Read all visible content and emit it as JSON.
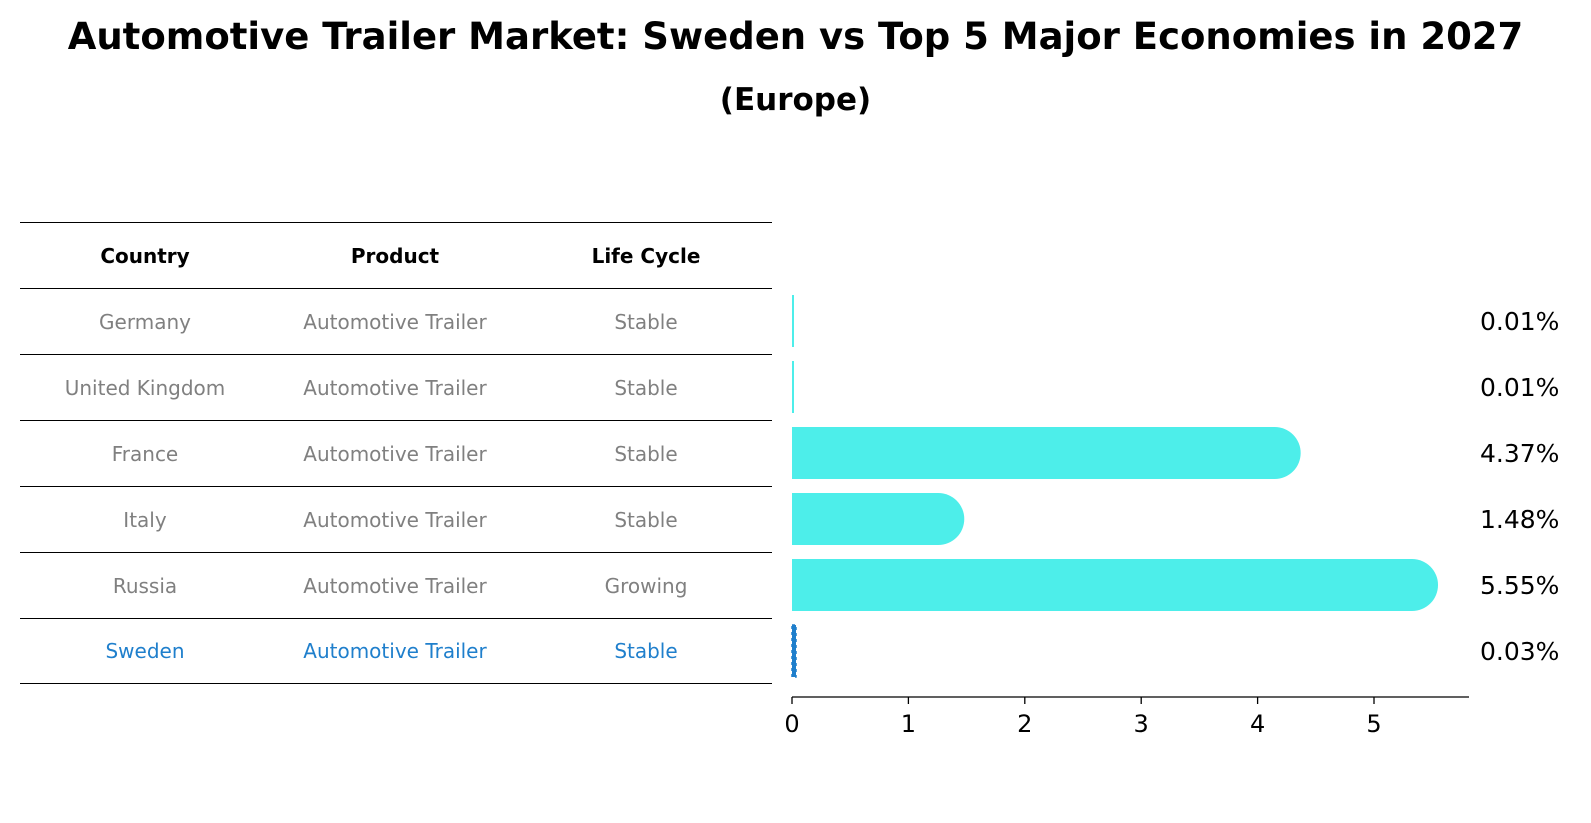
{
  "title": "Automotive Trailer Market: Sweden vs Top 5 Major Economies in 2027",
  "subtitle": "(Europe)",
  "table": {
    "headers": [
      "Country",
      "Product",
      "Life Cycle"
    ],
    "rows": [
      {
        "country": "Germany",
        "product": "Automotive Trailer",
        "life_cycle": "Stable"
      },
      {
        "country": "United Kingdom",
        "product": "Automotive Trailer",
        "life_cycle": "Stable"
      },
      {
        "country": "France",
        "product": "Automotive Trailer",
        "life_cycle": "Stable"
      },
      {
        "country": "Italy",
        "product": "Automotive Trailer",
        "life_cycle": "Stable"
      },
      {
        "country": "Russia",
        "product": "Automotive Trailer",
        "life_cycle": "Growing"
      },
      {
        "country": "Sweden",
        "product": "Automotive Trailer",
        "life_cycle": "Stable"
      }
    ]
  },
  "chart_data": {
    "type": "bar",
    "orientation": "horizontal",
    "title": "Automotive Trailer Market: Sweden vs Top 5 Major Economies in 2027",
    "subtitle": "(Europe)",
    "categories": [
      "Germany",
      "United Kingdom",
      "France",
      "Italy",
      "Russia",
      "Sweden"
    ],
    "values": [
      0.01,
      0.01,
      4.37,
      1.48,
      5.55,
      0.03
    ],
    "value_labels": [
      "0.01%",
      "0.01%",
      "4.37%",
      "1.48%",
      "5.55%",
      "0.03%"
    ],
    "highlight": "Sweden",
    "xlim": [
      0,
      5.8
    ],
    "xticks": [
      0,
      1,
      2,
      3,
      4,
      5
    ],
    "xlabel": "",
    "ylabel": "",
    "grid": false,
    "colors": {
      "bar": "#4deeea",
      "highlight_bar": "#1f7fcc",
      "highlight_text": "#1f7fcc",
      "muted_text": "#808080"
    }
  }
}
